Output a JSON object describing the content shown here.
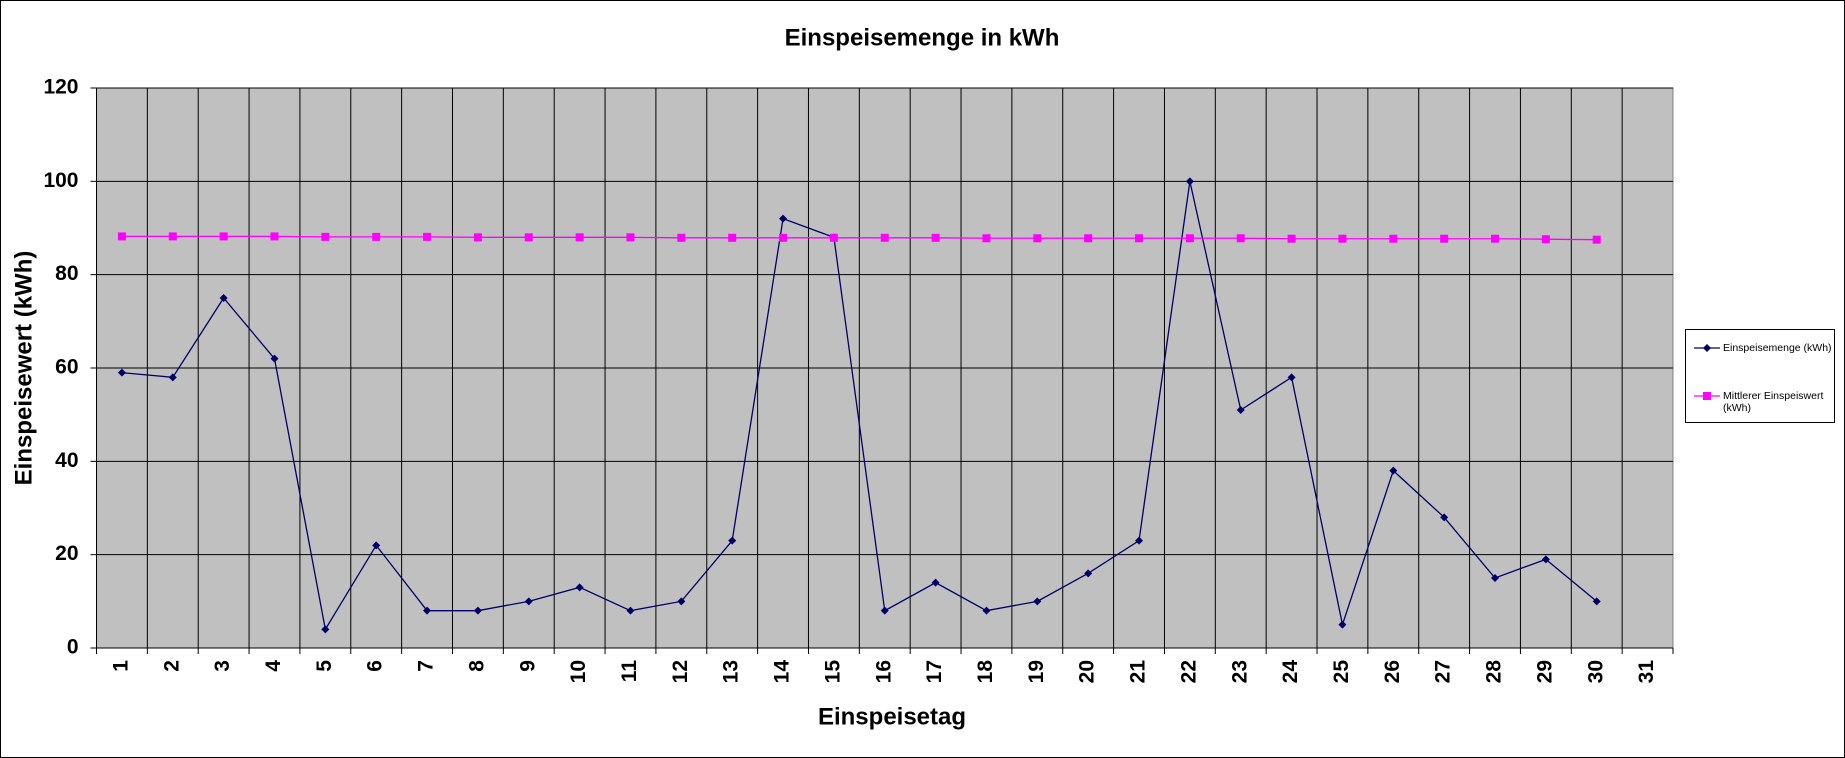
{
  "chart_data": {
    "type": "line",
    "title": "Einspeisemenge in kWh",
    "x_label": "Einspeisetag",
    "y_label": "Einspeisewert  (kWh)",
    "categories": [
      "1",
      "2",
      "3",
      "4",
      "5",
      "6",
      "7",
      "8",
      "9",
      "10",
      "11",
      "12",
      "13",
      "14",
      "15",
      "16",
      "17",
      "18",
      "19",
      "20",
      "21",
      "22",
      "23",
      "24",
      "25",
      "26",
      "27",
      "28",
      "29",
      "30",
      "31"
    ],
    "series": [
      {
        "name": "Einspeisemenge (kWh)",
        "color": "#000066",
        "marker": "diamond",
        "values": [
          59,
          58,
          75,
          62,
          4,
          22,
          8,
          8,
          10,
          13,
          8,
          10,
          23,
          92,
          88,
          8,
          14,
          8,
          10,
          16,
          23,
          100,
          51,
          58,
          5,
          38,
          28,
          15,
          19,
          10,
          null
        ]
      },
      {
        "name": "Mittlerer Einspeiswert (kWh)",
        "color": "#ff00ff",
        "marker": "square",
        "values": [
          88.2,
          88.2,
          88.2,
          88.2,
          88.1,
          88.1,
          88.1,
          88.0,
          88.0,
          88.0,
          88.0,
          87.9,
          87.9,
          87.9,
          87.9,
          87.9,
          87.9,
          87.8,
          87.8,
          87.8,
          87.8,
          87.8,
          87.8,
          87.7,
          87.7,
          87.7,
          87.7,
          87.7,
          87.6,
          87.5,
          null
        ]
      }
    ],
    "ylim": [
      0,
      120
    ],
    "yticks": [
      0,
      20,
      40,
      60,
      80,
      100,
      120
    ],
    "grid": true,
    "legend": "right"
  }
}
